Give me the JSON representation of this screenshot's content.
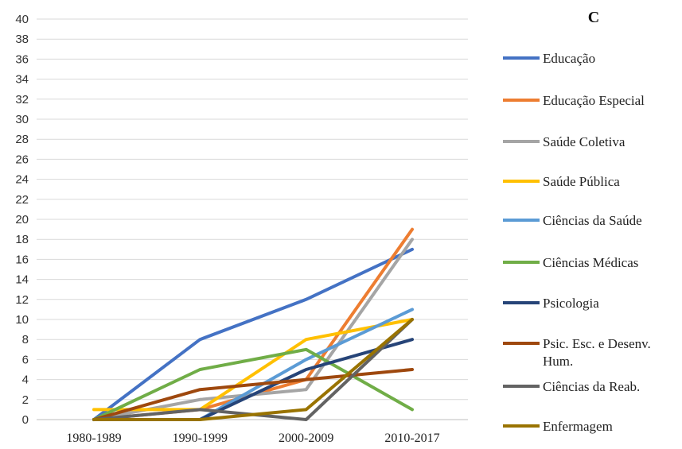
{
  "chart_data": {
    "type": "line",
    "panel_label": "C",
    "categories": [
      "1980-1989",
      "1990-1999",
      "2000-2009",
      "2010-2017"
    ],
    "ylim": [
      0,
      40
    ],
    "ytick_step": 2,
    "grid": true,
    "legend_position": "right",
    "series": [
      {
        "name": "Educação",
        "color": "#4472C4",
        "values": [
          0,
          8,
          12,
          17
        ]
      },
      {
        "name": "Educação Especial",
        "color": "#ED7D31",
        "values": [
          0,
          1,
          4,
          19
        ]
      },
      {
        "name": "Saúde Coletiva",
        "color": "#A5A5A5",
        "values": [
          0,
          2,
          3,
          18
        ]
      },
      {
        "name": "Saúde Pública",
        "color": "#FFC000",
        "values": [
          1,
          1,
          8,
          10
        ]
      },
      {
        "name": "Ciências da Saúde",
        "color": "#5B9BD5",
        "values": [
          0,
          0,
          6,
          11
        ]
      },
      {
        "name": "Ciências Médicas",
        "color": "#70AD47",
        "values": [
          0,
          5,
          7,
          1
        ]
      },
      {
        "name": "Psicologia",
        "color": "#264478",
        "values": [
          0,
          0,
          5,
          8
        ]
      },
      {
        "name": "Psic. Esc. e Desenv. Hum.",
        "color": "#9E480E",
        "values": [
          0,
          3,
          4,
          5
        ]
      },
      {
        "name": "Ciências da Reab.",
        "color": "#636363",
        "values": [
          0,
          1,
          0,
          10
        ]
      },
      {
        "name": "Enfermagem",
        "color": "#997300",
        "values": [
          0,
          0,
          1,
          10
        ]
      }
    ]
  }
}
